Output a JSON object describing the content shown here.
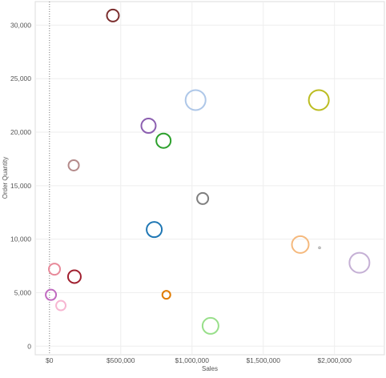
{
  "chart_data": {
    "type": "scatter",
    "title": "",
    "xlabel": "Sales",
    "ylabel": "Order Quantity",
    "xlim": [
      -100000,
      2350000
    ],
    "ylim": [
      -800,
      32200
    ],
    "x_ticks": [
      0,
      500000,
      1000000,
      1500000,
      2000000
    ],
    "x_tick_labels": [
      "$0",
      "$500,000",
      "$1,000,000",
      "$1,500,000",
      "$2,000,000"
    ],
    "y_ticks": [
      0,
      5000,
      10000,
      15000,
      20000,
      25000,
      30000
    ],
    "y_tick_labels": [
      "0",
      "5,000",
      "10,000",
      "15,000",
      "20,000",
      "25,000",
      "30,000"
    ],
    "grid": true,
    "zero_reference_line": true,
    "marker": "hollow-circle",
    "points": [
      {
        "x": 445000,
        "y": 30900,
        "size": 7.5,
        "color": "#7b2e2e"
      },
      {
        "x": 1025000,
        "y": 23000,
        "size": 12.5,
        "color": "#aec7e8"
      },
      {
        "x": 1890000,
        "y": 23000,
        "size": 12.5,
        "color": "#bcbd22"
      },
      {
        "x": 695000,
        "y": 20600,
        "size": 9,
        "color": "#8c5fb0"
      },
      {
        "x": 800000,
        "y": 19200,
        "size": 9,
        "color": "#2ca02c"
      },
      {
        "x": 170000,
        "y": 16900,
        "size": 6.5,
        "color": "#b48a8a"
      },
      {
        "x": 1075000,
        "y": 13800,
        "size": 7,
        "color": "#7f7f7f"
      },
      {
        "x": 735000,
        "y": 10900,
        "size": 9.5,
        "color": "#1f77b4"
      },
      {
        "x": 1760000,
        "y": 9500,
        "size": 10.5,
        "color": "#f5b97d"
      },
      {
        "x": 1895000,
        "y": 9200,
        "size": 1.2,
        "color": "#aaaaaa"
      },
      {
        "x": 2175000,
        "y": 7800,
        "size": 12.5,
        "color": "#c5b0d5"
      },
      {
        "x": 35000,
        "y": 7200,
        "size": 7,
        "color": "#e88a9a"
      },
      {
        "x": 175000,
        "y": 6500,
        "size": 8,
        "color": "#a0202f"
      },
      {
        "x": 10000,
        "y": 4800,
        "size": 6.5,
        "color": "#c06ac0"
      },
      {
        "x": 80000,
        "y": 3800,
        "size": 6,
        "color": "#f7b6d2"
      },
      {
        "x": 820000,
        "y": 4800,
        "size": 5,
        "color": "#e07b00"
      },
      {
        "x": 1130000,
        "y": 1900,
        "size": 10,
        "color": "#98df8a"
      }
    ]
  }
}
